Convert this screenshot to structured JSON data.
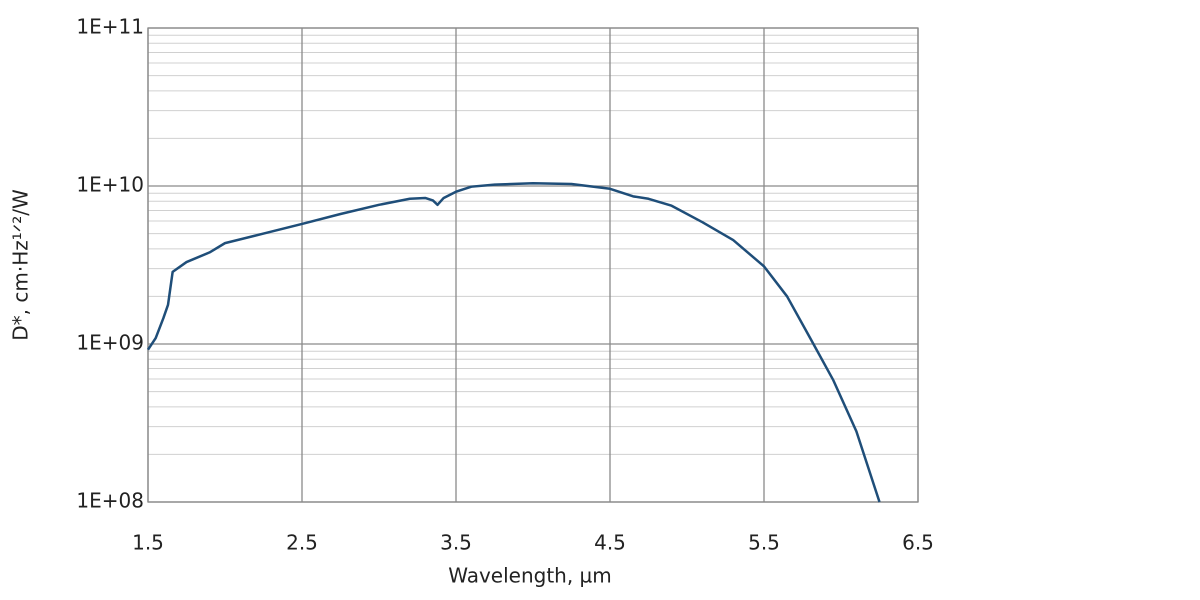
{
  "chart_data": {
    "type": "line",
    "x_label": "Wavelength, µm",
    "y_label": "D*, cm·Hz¹ᐟ²/W",
    "log_y": true,
    "grid": true,
    "minor_grid": true,
    "xlim": [
      1.5,
      6.5
    ],
    "xticks": [
      1.5,
      2.5,
      3.5,
      4.5,
      5.5,
      6.5
    ],
    "ylim": [
      100000000,
      100000000000
    ],
    "yticks": [
      {
        "value": 100000000,
        "label": "1E+08"
      },
      {
        "value": 1000000000,
        "label": "1E+09"
      },
      {
        "value": 10000000000,
        "label": "1E+10"
      },
      {
        "value": 100000000000,
        "label": "1E+11"
      }
    ],
    "x": [
      1.5,
      1.55,
      1.6,
      1.63,
      1.66,
      1.75,
      1.9,
      2.0,
      2.25,
      2.5,
      2.75,
      3.0,
      3.2,
      3.3,
      3.35,
      3.38,
      3.42,
      3.5,
      3.6,
      3.75,
      4.0,
      4.25,
      4.5,
      4.65,
      4.75,
      4.9,
      5.1,
      5.3,
      5.5,
      5.65,
      5.8,
      5.95,
      6.1,
      6.25
    ],
    "series": [
      {
        "color": "#1f4e79",
        "values": [
          920000000,
          1090000000,
          1460000000,
          1770000000,
          2860000000,
          3300000000,
          3800000000,
          4350000000,
          5000000000,
          5750000000,
          6650000000,
          7600000000,
          8300000000,
          8400000000,
          8100000000,
          7600000000,
          8400000000,
          9200000000,
          9900000000,
          10200000000,
          10400000000,
          10300000000,
          9600000000,
          8600000000,
          8300000000,
          7500000000,
          5900000000,
          4550000000,
          3100000000,
          2000000000,
          1090000000,
          590000000,
          280000000,
          100000000
        ]
      }
    ]
  }
}
